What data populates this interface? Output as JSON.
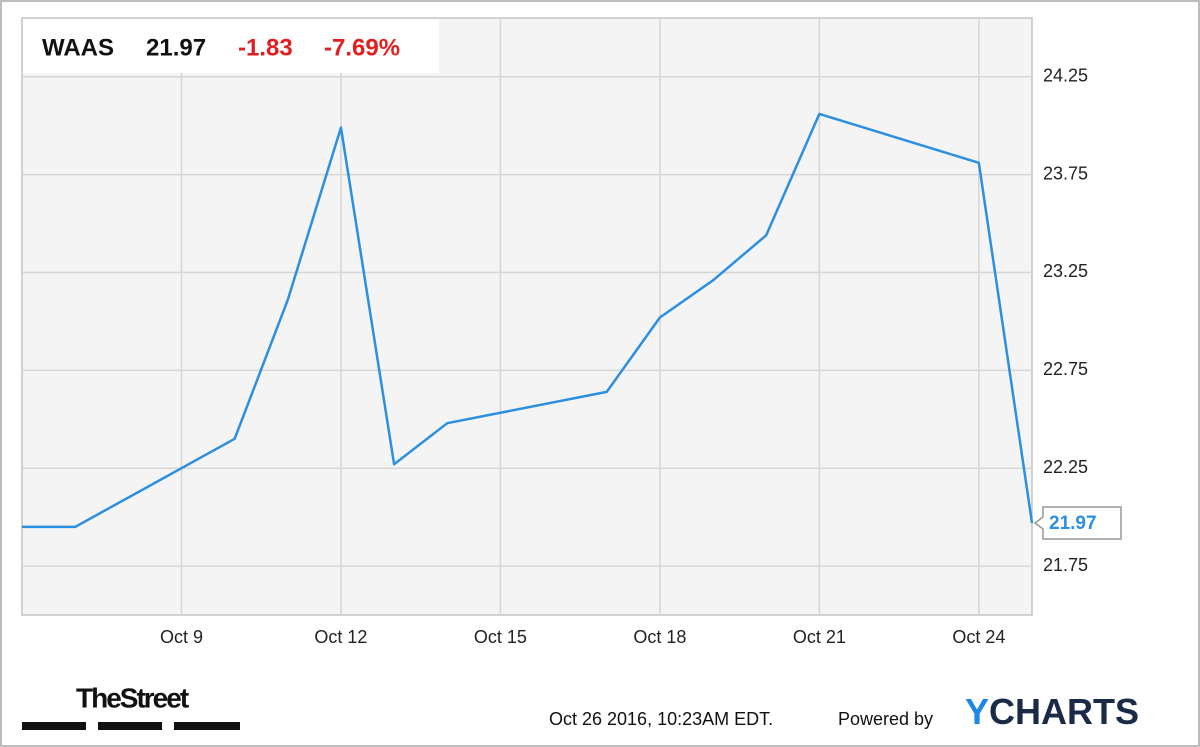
{
  "header": {
    "symbol": "WAAS",
    "price": "21.97",
    "change": "-1.83",
    "change_percent": "-7.69%"
  },
  "chart_data": {
    "type": "line",
    "x": [
      "Oct 6",
      "Oct 7",
      "Oct 10",
      "Oct 11",
      "Oct 12",
      "Oct 13",
      "Oct 14",
      "Oct 17",
      "Oct 18",
      "Oct 19",
      "Oct 20",
      "Oct 21",
      "Oct 24",
      "Oct 25"
    ],
    "series": [
      {
        "name": "WAAS",
        "color": "#2d8fe0",
        "values": [
          21.95,
          21.95,
          22.4,
          23.11,
          23.99,
          22.27,
          22.48,
          22.64,
          23.02,
          23.21,
          23.44,
          24.06,
          23.81,
          21.97
        ]
      }
    ],
    "xlim": [
      "Oct 6",
      "Oct 25"
    ],
    "xticks": [
      "Oct 9",
      "Oct 12",
      "Oct 15",
      "Oct 18",
      "Oct 21",
      "Oct 24"
    ],
    "ylim": [
      21.5,
      24.55
    ],
    "yticks": [
      21.75,
      22.25,
      22.75,
      23.25,
      23.75,
      24.25
    ],
    "grid": true
  },
  "footer": {
    "logo": "TheStreet",
    "timestamp": "Oct 26 2016, 10:23AM EDT.",
    "powered_by": "Powered by",
    "brand": "YCHARTS"
  }
}
